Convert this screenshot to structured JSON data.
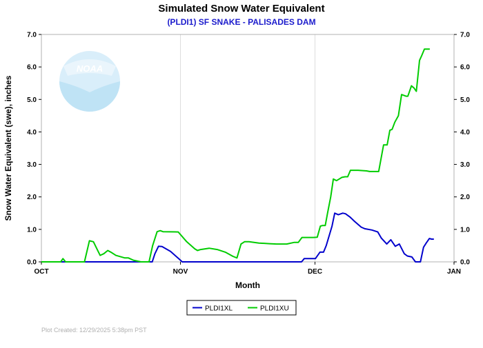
{
  "chart_data": {
    "type": "line",
    "title": "Simulated Snow Water Equivalent",
    "subtitle": "(PLDI1) SF SNAKE - PALISADES DAM",
    "xlabel": "Month",
    "ylabel": "Snow Water Equivalent (swe),  inches",
    "x_ticks": [
      {
        "label": "OCT",
        "day": 0
      },
      {
        "label": "NOV",
        "day": 31
      },
      {
        "label": "DEC",
        "day": 61
      },
      {
        "label": "JAN",
        "day": 92
      }
    ],
    "xlim_days": [
      0,
      92
    ],
    "ylim": [
      0,
      7
    ],
    "y_ticks": [
      "0.0",
      "1.0",
      "2.0",
      "3.0",
      "4.0",
      "5.0",
      "6.0",
      "7.0"
    ],
    "grid": true,
    "legend_position": "bottom-center",
    "series": [
      {
        "name": "PLDI1XL",
        "color": "#0000cc",
        "points": [
          [
            0,
            0
          ],
          [
            24.7,
            0
          ],
          [
            25.3,
            0.25
          ],
          [
            26.1,
            0.48
          ],
          [
            26.9,
            0.47
          ],
          [
            28.8,
            0.32
          ],
          [
            30.6,
            0.1
          ],
          [
            31.4,
            0
          ],
          [
            58,
            0
          ],
          [
            58.6,
            0.1
          ],
          [
            60,
            0.1
          ],
          [
            61.1,
            0.1
          ],
          [
            62.1,
            0.3
          ],
          [
            62.9,
            0.3
          ],
          [
            63.5,
            0.5
          ],
          [
            64.8,
            1.1
          ],
          [
            65.4,
            1.5
          ],
          [
            66.2,
            1.45
          ],
          [
            67.2,
            1.5
          ],
          [
            67.8,
            1.48
          ],
          [
            68.8,
            1.38
          ],
          [
            69.8,
            1.25
          ],
          [
            71.3,
            1.07
          ],
          [
            72.1,
            1.02
          ],
          [
            73.7,
            0.98
          ],
          [
            75,
            0.92
          ],
          [
            75.8,
            0.73
          ],
          [
            77,
            0.55
          ],
          [
            77.9,
            0.68
          ],
          [
            78.9,
            0.48
          ],
          [
            79.8,
            0.55
          ],
          [
            80.9,
            0.25
          ],
          [
            81.6,
            0.18
          ],
          [
            82.6,
            0.15
          ],
          [
            83.4,
            0
          ],
          [
            84.5,
            0
          ],
          [
            85.2,
            0.45
          ],
          [
            85.8,
            0.58
          ],
          [
            86.5,
            0.72
          ],
          [
            87,
            0.7
          ],
          [
            87.5,
            0.7
          ]
        ]
      },
      {
        "name": "PLDI1XU",
        "color": "#00cc00",
        "points": [
          [
            0,
            0
          ],
          [
            4.3,
            0
          ],
          [
            4.8,
            0.1
          ],
          [
            5.4,
            0
          ],
          [
            9.6,
            0
          ],
          [
            10.7,
            0.65
          ],
          [
            11.6,
            0.62
          ],
          [
            12.2,
            0.45
          ],
          [
            13.1,
            0.2
          ],
          [
            13.9,
            0.25
          ],
          [
            14.8,
            0.35
          ],
          [
            15.7,
            0.28
          ],
          [
            16.6,
            0.2
          ],
          [
            18.6,
            0.12
          ],
          [
            19.4,
            0.12
          ],
          [
            20.5,
            0.05
          ],
          [
            22.2,
            0
          ],
          [
            24,
            0
          ],
          [
            24.8,
            0.5
          ],
          [
            25.8,
            0.93
          ],
          [
            26.5,
            0.96
          ],
          [
            27.1,
            0.93
          ],
          [
            30.5,
            0.92
          ],
          [
            32.4,
            0.62
          ],
          [
            34.2,
            0.4
          ],
          [
            34.8,
            0.35
          ],
          [
            35.5,
            0.38
          ],
          [
            37.4,
            0.42
          ],
          [
            39.2,
            0.38
          ],
          [
            41,
            0.3
          ],
          [
            42.7,
            0.17
          ],
          [
            43.6,
            0.12
          ],
          [
            44.5,
            0.55
          ],
          [
            45.3,
            0.62
          ],
          [
            46.3,
            0.62
          ],
          [
            48.5,
            0.58
          ],
          [
            50.8,
            0.56
          ],
          [
            52.4,
            0.55
          ],
          [
            53.2,
            0.55
          ],
          [
            54.7,
            0.55
          ],
          [
            56.4,
            0.6
          ],
          [
            57.3,
            0.6
          ],
          [
            58.1,
            0.75
          ],
          [
            60.6,
            0.75
          ],
          [
            61.5,
            0.76
          ],
          [
            62.2,
            1.1
          ],
          [
            62.7,
            1.12
          ],
          [
            63.3,
            1.12
          ],
          [
            63.8,
            1.5
          ],
          [
            64.5,
            2.0
          ],
          [
            65.1,
            2.55
          ],
          [
            65.8,
            2.5
          ],
          [
            66.4,
            2.55
          ],
          [
            67,
            2.6
          ],
          [
            67.7,
            2.62
          ],
          [
            68.3,
            2.62
          ],
          [
            68.9,
            2.82
          ],
          [
            69.6,
            2.82
          ],
          [
            70.6,
            2.82
          ],
          [
            72.5,
            2.8
          ],
          [
            73.2,
            2.78
          ],
          [
            75.2,
            2.78
          ],
          [
            76.3,
            3.6
          ],
          [
            76.7,
            3.6
          ],
          [
            77.1,
            3.6
          ],
          [
            77.7,
            4.05
          ],
          [
            78.2,
            4.08
          ],
          [
            78.8,
            4.3
          ],
          [
            79.6,
            4.5
          ],
          [
            80.3,
            5.15
          ],
          [
            81.3,
            5.1
          ],
          [
            81.7,
            5.1
          ],
          [
            82.5,
            5.42
          ],
          [
            83.1,
            5.35
          ],
          [
            83.6,
            5.25
          ],
          [
            84.3,
            6.2
          ],
          [
            84.8,
            6.35
          ],
          [
            85.4,
            6.55
          ],
          [
            86.6,
            6.55
          ]
        ]
      }
    ],
    "footer": "Plot Created:  12/29/2025 5:38pm PST",
    "watermark_text": "NOAA"
  }
}
